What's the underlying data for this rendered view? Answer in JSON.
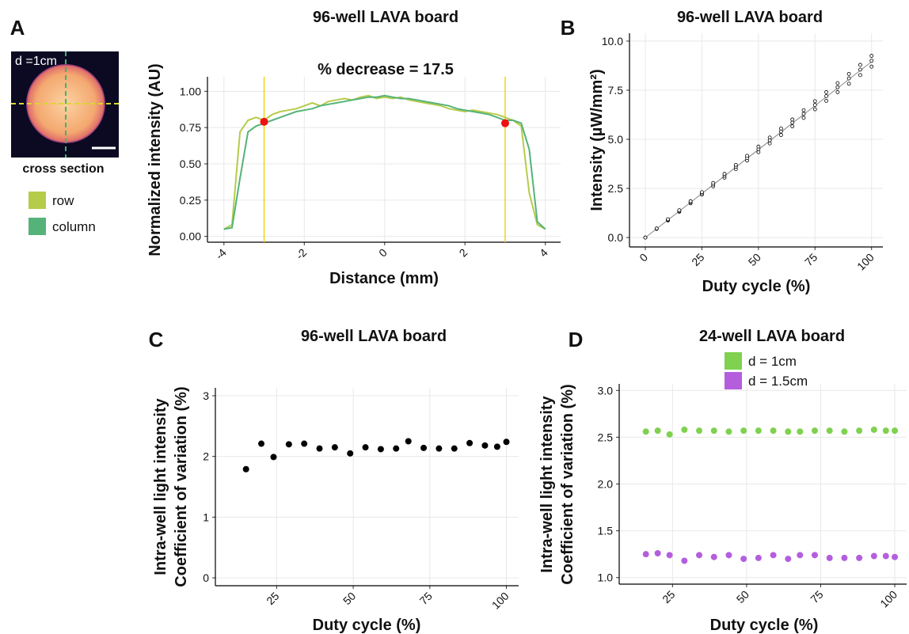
{
  "chart_data": [
    {
      "type": "line",
      "panel": "A",
      "title": "96-well LAVA board",
      "subtitle": "% decrease = 17.5",
      "image": {
        "label": "d =1cm",
        "caption": "cross section"
      },
      "x_label": "Distance (mm)",
      "y_label": "Normalized intensity (AU)",
      "x": [
        -4.0,
        -3.8,
        -3.6,
        -3.4,
        -3.2,
        -3.0,
        -2.8,
        -2.6,
        -2.4,
        -2.2,
        -2.0,
        -1.8,
        -1.6,
        -1.4,
        -1.2,
        -1.0,
        -0.8,
        -0.6,
        -0.4,
        -0.2,
        0.0,
        0.2,
        0.4,
        0.6,
        0.8,
        1.0,
        1.2,
        1.4,
        1.6,
        1.8,
        2.0,
        2.2,
        2.4,
        2.6,
        2.8,
        3.0,
        3.2,
        3.4,
        3.6,
        3.8,
        4.0
      ],
      "series": [
        {
          "name": "row",
          "color": "#b5cc4a",
          "values": [
            0.05,
            0.08,
            0.72,
            0.8,
            0.82,
            0.8,
            0.84,
            0.86,
            0.87,
            0.88,
            0.9,
            0.92,
            0.9,
            0.93,
            0.94,
            0.95,
            0.94,
            0.96,
            0.97,
            0.95,
            0.96,
            0.95,
            0.96,
            0.94,
            0.93,
            0.92,
            0.91,
            0.9,
            0.88,
            0.87,
            0.86,
            0.87,
            0.86,
            0.85,
            0.84,
            0.82,
            0.8,
            0.76,
            0.3,
            0.08,
            0.05
          ]
        },
        {
          "name": "column",
          "color": "#55b37a",
          "values": [
            0.05,
            0.06,
            0.4,
            0.72,
            0.76,
            0.78,
            0.8,
            0.82,
            0.84,
            0.86,
            0.87,
            0.88,
            0.9,
            0.91,
            0.92,
            0.93,
            0.94,
            0.95,
            0.96,
            0.96,
            0.97,
            0.96,
            0.95,
            0.95,
            0.94,
            0.93,
            0.92,
            0.91,
            0.9,
            0.88,
            0.87,
            0.86,
            0.85,
            0.84,
            0.82,
            0.8,
            0.8,
            0.78,
            0.6,
            0.1,
            0.05
          ]
        }
      ],
      "vlines": [
        -3,
        3
      ],
      "vline_color": "#f2d21b",
      "markers": {
        "x": [
          -3,
          3
        ],
        "y": [
          0.79,
          0.78
        ],
        "color": "#ee1111"
      },
      "xlim": [
        -4.41,
        4.38
      ],
      "ylim": [
        -0.04,
        1.1
      ],
      "xticks": [
        -4,
        -2,
        0,
        2,
        4
      ],
      "yticks": [
        {
          "value": 0,
          "label": "0.00"
        },
        {
          "value": 0.25,
          "label": "0.25"
        },
        {
          "value": 0.5,
          "label": "0.50"
        },
        {
          "value": 0.75,
          "label": "0.75"
        },
        {
          "value": 1,
          "label": "1.00"
        }
      ],
      "grid": true,
      "legend": "left"
    },
    {
      "type": "scatter",
      "panel": "B",
      "title": "96-well LAVA board",
      "x_label": "Duty cycle (%)",
      "y_label": "Intensity (µW/mm²)",
      "x": [
        0,
        5,
        10,
        15,
        20,
        25,
        30,
        35,
        40,
        45,
        50,
        55,
        60,
        65,
        70,
        75,
        80,
        85,
        90,
        95,
        100
      ],
      "series": [
        {
          "color": "#000000",
          "values": [
            0,
            0.44,
            0.87,
            1.31,
            1.74,
            2.18,
            2.61,
            3.05,
            3.48,
            3.92,
            4.35,
            4.79,
            5.22,
            5.66,
            6.09,
            6.53,
            6.96,
            7.4,
            7.83,
            8.27,
            8.7
          ]
        },
        {
          "color": "#000000",
          "values": [
            0,
            0.45,
            0.9,
            1.35,
            1.8,
            2.25,
            2.7,
            3.15,
            3.6,
            4.05,
            4.5,
            4.95,
            5.4,
            5.85,
            6.3,
            6.75,
            7.2,
            7.65,
            8.1,
            8.55,
            9.0
          ]
        },
        {
          "color": "#000000",
          "values": [
            0,
            0.46,
            0.93,
            1.39,
            1.85,
            2.31,
            2.78,
            3.24,
            3.7,
            4.16,
            4.63,
            5.09,
            5.55,
            6.01,
            6.48,
            6.94,
            7.4,
            7.86,
            8.33,
            8.79,
            9.25
          ]
        }
      ],
      "hollow": true,
      "fit_line": {
        "x": [
          0,
          100
        ],
        "y": [
          0,
          8.95
        ],
        "color": "#888888"
      },
      "xlim": [
        -7,
        105
      ],
      "ylim": [
        -0.48,
        10.4
      ],
      "xticks": [
        0,
        25,
        50,
        75,
        100
      ],
      "yticks": [
        {
          "value": 0,
          "label": "0.0"
        },
        {
          "value": 2.5,
          "label": "2.5"
        },
        {
          "value": 5,
          "label": "5.0"
        },
        {
          "value": 7.5,
          "label": "7.5"
        },
        {
          "value": 10,
          "label": "10.0"
        }
      ],
      "grid": true
    },
    {
      "type": "scatter",
      "panel": "C",
      "title": "96-well LAVA board",
      "x_label": "Duty cycle (%)",
      "y_label": [
        "Intra-well light intensity",
        "Coefficient of variation (%)"
      ],
      "x": [
        15,
        20,
        24,
        29,
        34,
        39,
        44,
        49,
        54,
        59,
        64,
        68,
        73,
        78,
        83,
        88,
        93,
        97,
        100
      ],
      "series": [
        {
          "color": "#000000",
          "values": [
            1.79,
            2.21,
            1.99,
            2.2,
            2.21,
            2.13,
            2.15,
            2.05,
            2.15,
            2.12,
            2.13,
            2.25,
            2.14,
            2.13,
            2.13,
            2.22,
            2.18,
            2.16,
            2.24
          ]
        }
      ],
      "xlim": [
        5,
        104
      ],
      "ylim": [
        -0.13,
        3.13
      ],
      "xticks": [
        25,
        50,
        75,
        100
      ],
      "yticks": [
        0,
        1,
        2,
        3
      ],
      "grid": true
    },
    {
      "type": "scatter",
      "panel": "D",
      "title": "24-well LAVA board",
      "x_label": "Duty cycle (%)",
      "y_label": [
        "Intra-well light intensity",
        "Coefficient of variation (%)"
      ],
      "x": [
        16,
        20,
        24,
        29,
        34,
        39,
        44,
        49,
        54,
        59,
        64,
        68,
        73,
        78,
        83,
        88,
        93,
        97,
        100
      ],
      "series": [
        {
          "name": "d = 1cm",
          "color": "#7fd14f",
          "values": [
            2.56,
            2.57,
            2.53,
            2.58,
            2.57,
            2.57,
            2.56,
            2.57,
            2.57,
            2.57,
            2.56,
            2.56,
            2.57,
            2.57,
            2.56,
            2.57,
            2.58,
            2.57,
            2.57
          ]
        },
        {
          "name": "d = 1.5cm",
          "color": "#b45ede",
          "values": [
            1.25,
            1.26,
            1.24,
            1.18,
            1.24,
            1.22,
            1.24,
            1.2,
            1.21,
            1.24,
            1.2,
            1.24,
            1.24,
            1.21,
            1.21,
            1.21,
            1.23,
            1.23,
            1.22
          ]
        }
      ],
      "xlim": [
        7,
        104
      ],
      "ylim": [
        0.93,
        3.07
      ],
      "xticks": [
        25,
        50,
        75,
        100
      ],
      "yticks": [
        {
          "value": 1,
          "label": "1.0"
        },
        {
          "value": 1.5,
          "label": "1.5"
        },
        {
          "value": 2,
          "label": "2.0"
        },
        {
          "value": 2.5,
          "label": "2.5"
        },
        {
          "value": 3,
          "label": "3.0"
        }
      ],
      "grid": true,
      "legend": "top"
    }
  ]
}
